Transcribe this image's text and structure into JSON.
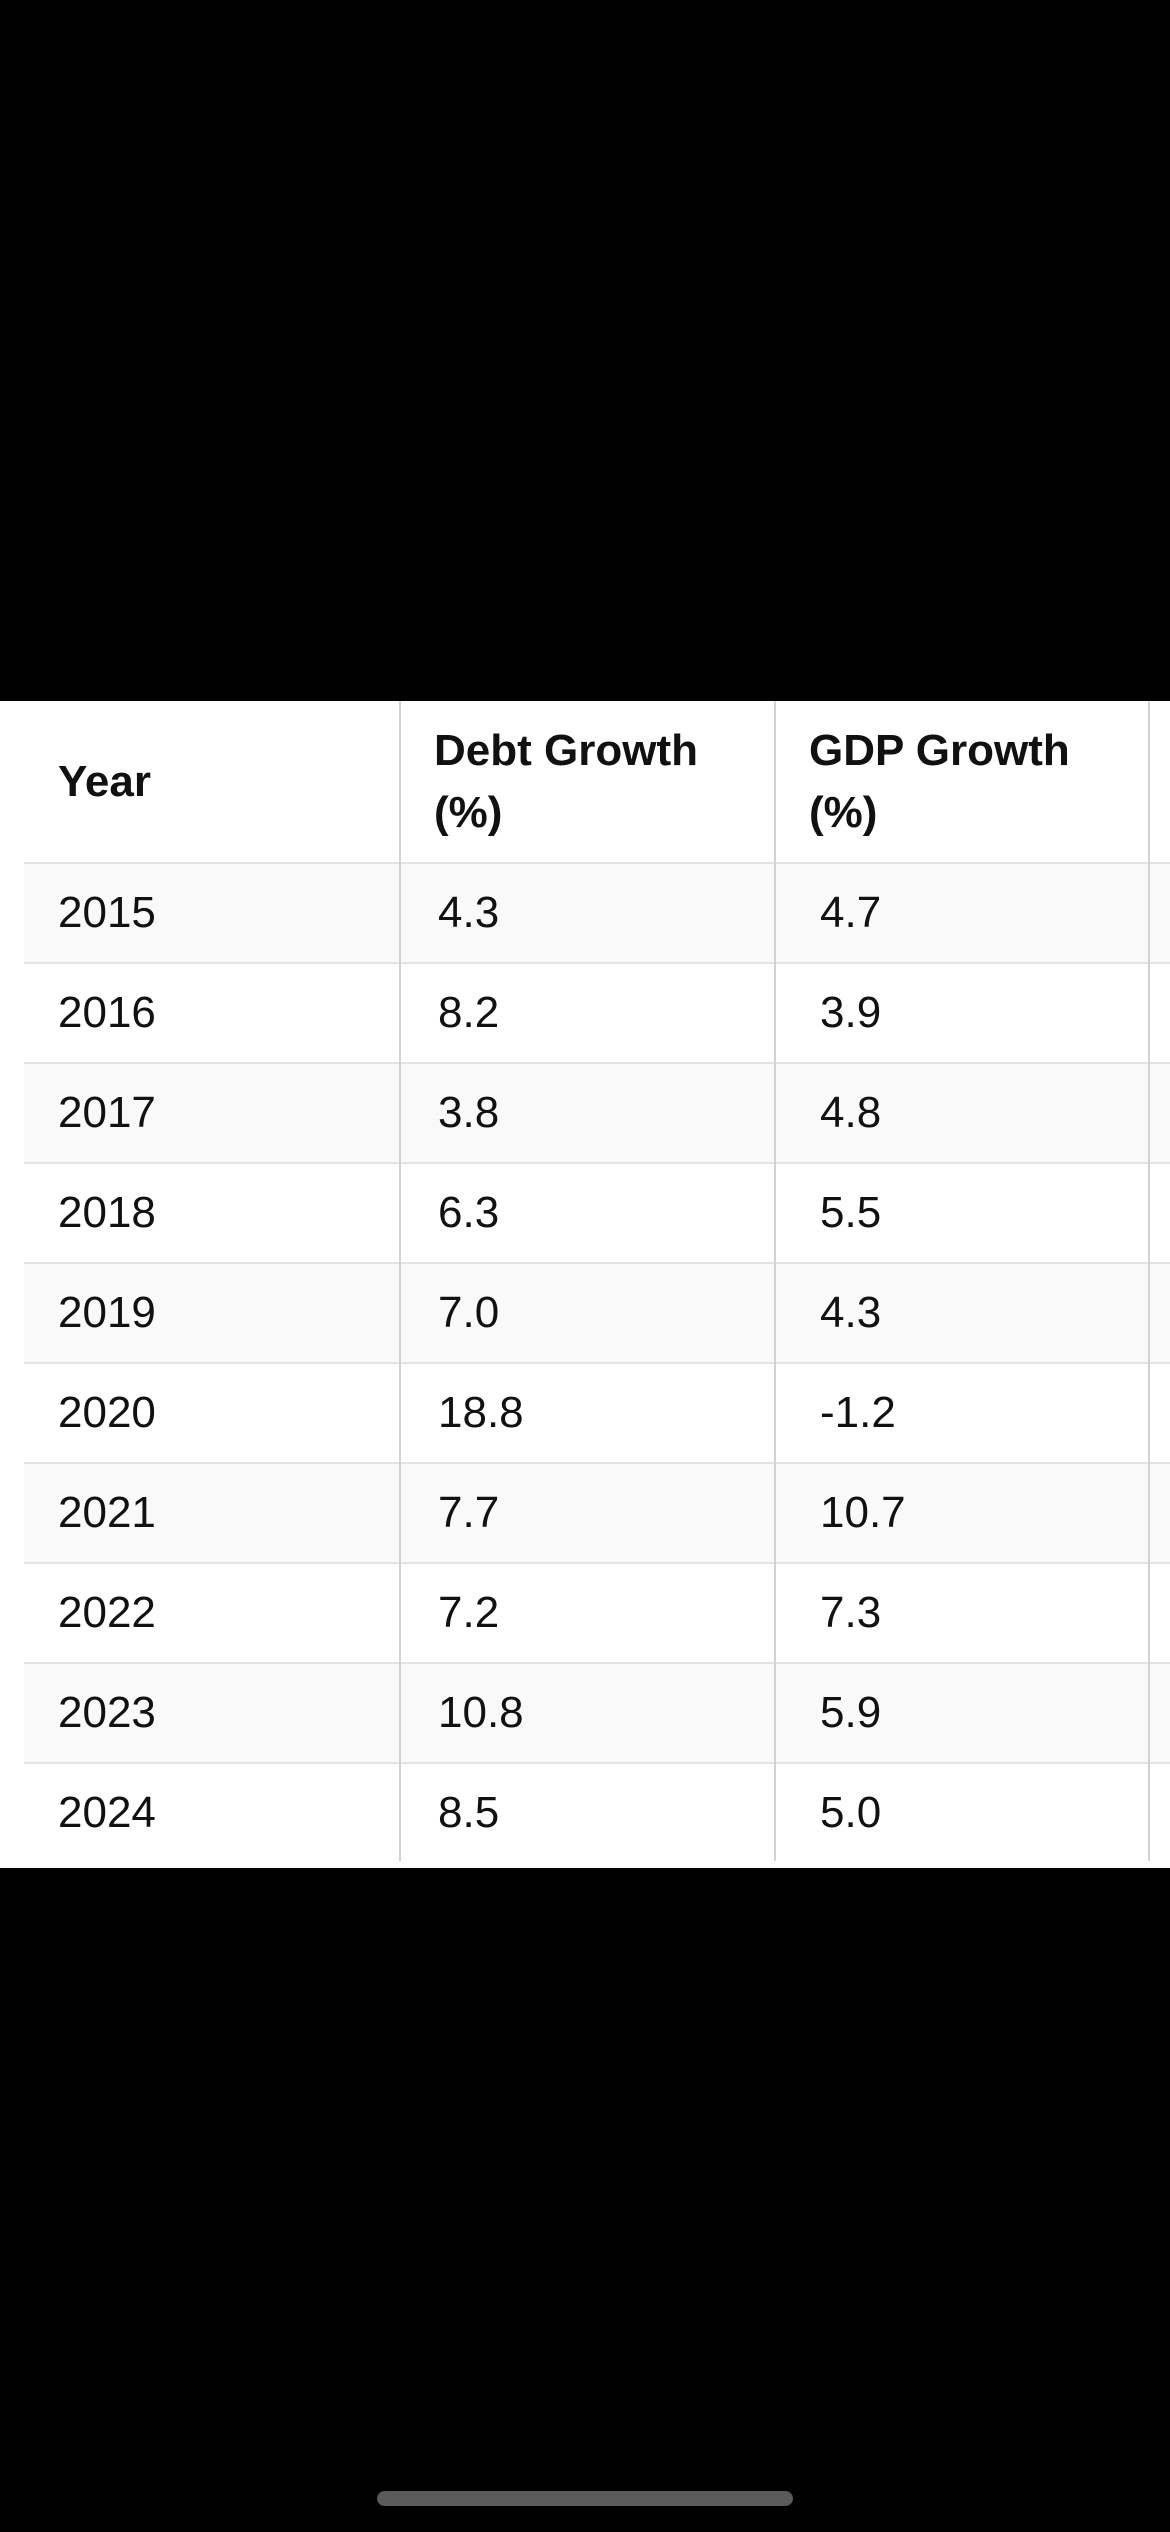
{
  "table": {
    "headers": {
      "year": "Year",
      "debt_growth": "Debt Growth (%)",
      "gdp_growth": "GDP Growth (%)"
    },
    "rows": [
      {
        "year": "2015",
        "debt_growth": "4.3",
        "gdp_growth": "4.7"
      },
      {
        "year": "2016",
        "debt_growth": "8.2",
        "gdp_growth": "3.9"
      },
      {
        "year": "2017",
        "debt_growth": "3.8",
        "gdp_growth": "4.8"
      },
      {
        "year": "2018",
        "debt_growth": "6.3",
        "gdp_growth": "5.5"
      },
      {
        "year": "2019",
        "debt_growth": "7.0",
        "gdp_growth": "4.3"
      },
      {
        "year": "2020",
        "debt_growth": "18.8",
        "gdp_growth": "-1.2"
      },
      {
        "year": "2021",
        "debt_growth": "7.7",
        "gdp_growth": "10.7"
      },
      {
        "year": "2022",
        "debt_growth": "7.2",
        "gdp_growth": "7.3"
      },
      {
        "year": "2023",
        "debt_growth": "10.8",
        "gdp_growth": "5.9"
      },
      {
        "year": "2024",
        "debt_growth": "8.5",
        "gdp_growth": "5.0"
      }
    ]
  },
  "colors": {
    "background": "#000000",
    "table_background": "#ffffff",
    "alt_row": "#f9f9f9",
    "text": "#111111",
    "grid_line": "#d2d2d2"
  }
}
